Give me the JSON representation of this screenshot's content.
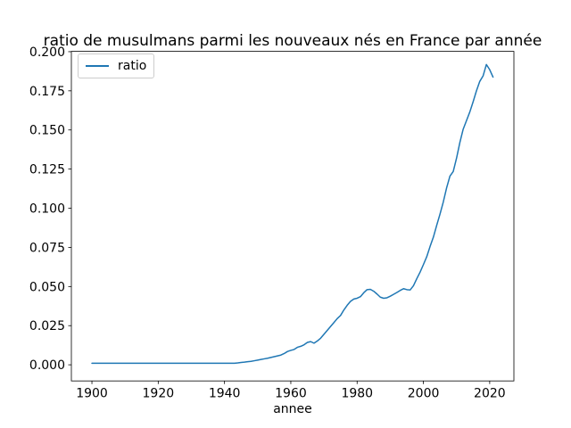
{
  "title": "ratio de musulmans parmi les nouveaux nés en France par année",
  "colors": {
    "background": "#ffffff",
    "line": "#1f77b4",
    "axis": "#000000",
    "legend_border": "#cccccc"
  },
  "legend": {
    "entries": [
      {
        "label": "ratio",
        "color": "#1f77b4"
      }
    ],
    "position": "upper-left"
  },
  "axes": {
    "xlabel": "annee",
    "ylabel": "",
    "x_ticks": [
      1900,
      1920,
      1940,
      1960,
      1980,
      2000,
      2020
    ],
    "y_ticks": [
      0.0,
      0.025,
      0.05,
      0.075,
      0.1,
      0.125,
      0.15,
      0.175,
      0.2
    ],
    "y_tick_format_decimals": 3
  },
  "chart_data": {
    "type": "line",
    "title": "ratio de musulmans parmi les nouveaux nés en France par année",
    "xlabel": "annee",
    "ylabel": "",
    "legend_entries": [
      "ratio"
    ],
    "legend_position": "upper-left",
    "grid": false,
    "line_color": "#1f77b4",
    "xlim": [
      1893.8,
      2027.3
    ],
    "ylim": [
      -0.0103,
      0.2002
    ],
    "x": [
      1900,
      1901,
      1902,
      1903,
      1904,
      1905,
      1906,
      1907,
      1908,
      1909,
      1910,
      1911,
      1912,
      1913,
      1914,
      1915,
      1916,
      1917,
      1918,
      1919,
      1920,
      1921,
      1922,
      1923,
      1924,
      1925,
      1926,
      1927,
      1928,
      1929,
      1930,
      1931,
      1932,
      1933,
      1934,
      1935,
      1936,
      1937,
      1938,
      1939,
      1940,
      1941,
      1942,
      1943,
      1944,
      1945,
      1946,
      1947,
      1948,
      1949,
      1950,
      1951,
      1952,
      1953,
      1954,
      1955,
      1956,
      1957,
      1958,
      1959,
      1960,
      1961,
      1962,
      1963,
      1964,
      1965,
      1966,
      1967,
      1968,
      1969,
      1970,
      1971,
      1972,
      1973,
      1974,
      1975,
      1976,
      1977,
      1978,
      1979,
      1980,
      1981,
      1982,
      1983,
      1984,
      1985,
      1986,
      1987,
      1988,
      1989,
      1990,
      1991,
      1992,
      1993,
      1994,
      1995,
      1996,
      1997,
      1998,
      1999,
      2000,
      2001,
      2002,
      2003,
      2004,
      2005,
      2006,
      2007,
      2008,
      2009,
      2010,
      2011,
      2012,
      2013,
      2014,
      2015,
      2016,
      2017,
      2018,
      2019,
      2020,
      2021
    ],
    "series": [
      {
        "name": "ratio",
        "values": [
          0.001,
          0.001,
          0.001,
          0.001,
          0.001,
          0.001,
          0.001,
          0.001,
          0.001,
          0.001,
          0.001,
          0.001,
          0.001,
          0.001,
          0.001,
          0.001,
          0.001,
          0.001,
          0.001,
          0.001,
          0.001,
          0.001,
          0.001,
          0.001,
          0.001,
          0.001,
          0.001,
          0.001,
          0.001,
          0.001,
          0.001,
          0.001,
          0.001,
          0.001,
          0.001,
          0.001,
          0.001,
          0.001,
          0.001,
          0.001,
          0.001,
          0.001,
          0.001,
          0.001,
          0.0012,
          0.0015,
          0.0017,
          0.002,
          0.0022,
          0.0026,
          0.003,
          0.0034,
          0.0038,
          0.0042,
          0.0047,
          0.0052,
          0.0057,
          0.0062,
          0.0072,
          0.0085,
          0.0092,
          0.0098,
          0.0112,
          0.0118,
          0.0128,
          0.0143,
          0.0148,
          0.0138,
          0.0152,
          0.017,
          0.0195,
          0.022,
          0.0245,
          0.027,
          0.0295,
          0.0315,
          0.035,
          0.038,
          0.0405,
          0.042,
          0.0425,
          0.0435,
          0.046,
          0.048,
          0.0482,
          0.047,
          0.0452,
          0.0432,
          0.0425,
          0.0428,
          0.0438,
          0.045,
          0.0462,
          0.0475,
          0.0486,
          0.048,
          0.0478,
          0.0505,
          0.055,
          0.0592,
          0.064,
          0.069,
          0.0755,
          0.0815,
          0.089,
          0.0962,
          0.104,
          0.113,
          0.1205,
          0.1235,
          0.132,
          0.142,
          0.1505,
          0.156,
          0.1615,
          0.168,
          0.175,
          0.181,
          0.1845,
          0.1918,
          0.1885,
          0.1838
        ]
      }
    ]
  }
}
